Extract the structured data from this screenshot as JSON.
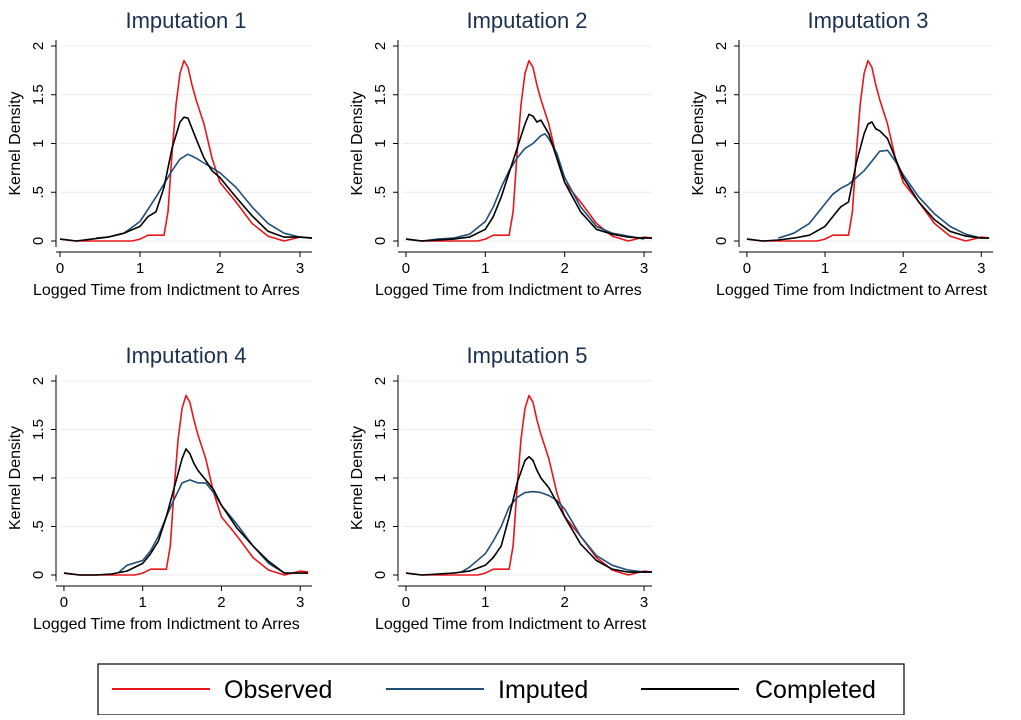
{
  "colors": {
    "observed": "#e8161b",
    "imputed": "#1f4e79",
    "completed": "#000000",
    "title": "#1c3150",
    "grid": "#ececec",
    "axis": "#000000"
  },
  "legend": {
    "placement": "bottom",
    "entries": [
      {
        "label": "Observed",
        "color_key": "observed"
      },
      {
        "label": "Imputed",
        "color_key": "imputed"
      },
      {
        "label": "Completed",
        "color_key": "completed"
      }
    ]
  },
  "chart_data": [
    {
      "type": "line",
      "title": "Imputation 1",
      "xlabel": "Logged Time from Indictment to Arres",
      "ylabel": "Kernel Density",
      "xlim": [
        0,
        3.15
      ],
      "ylim": [
        0,
        2
      ],
      "xticks": [
        "0",
        "1",
        "2",
        "3"
      ],
      "yticks": [
        "0",
        ".5",
        "1",
        "1.5",
        "2"
      ],
      "grid": true,
      "series": [
        {
          "name": "Observed",
          "color_key": "observed",
          "x": [
            0,
            0.2,
            0.5,
            0.9,
            1.0,
            1.1,
            1.2,
            1.3,
            1.35,
            1.4,
            1.45,
            1.5,
            1.55,
            1.6,
            1.65,
            1.7,
            1.8,
            1.9,
            2.0,
            2.2,
            2.4,
            2.6,
            2.8,
            3.0,
            3.15
          ],
          "y": [
            0.02,
            0.0,
            0.0,
            0.0,
            0.02,
            0.06,
            0.06,
            0.06,
            0.3,
            0.9,
            1.4,
            1.72,
            1.85,
            1.78,
            1.6,
            1.45,
            1.2,
            0.85,
            0.6,
            0.4,
            0.18,
            0.05,
            0.0,
            0.04,
            0.03
          ]
        },
        {
          "name": "Imputed",
          "color_key": "imputed",
          "x": [
            0.45,
            0.6,
            0.8,
            1.0,
            1.2,
            1.4,
            1.5,
            1.6,
            1.7,
            1.8,
            1.9,
            2.0,
            2.2,
            2.4,
            2.6,
            2.8,
            3.0,
            3.15
          ],
          "y": [
            0.03,
            0.04,
            0.08,
            0.2,
            0.45,
            0.72,
            0.84,
            0.89,
            0.85,
            0.8,
            0.75,
            0.7,
            0.55,
            0.35,
            0.18,
            0.08,
            0.04,
            0.03
          ]
        },
        {
          "name": "Completed",
          "color_key": "completed",
          "x": [
            0,
            0.2,
            0.4,
            0.6,
            0.8,
            1.0,
            1.1,
            1.2,
            1.3,
            1.4,
            1.5,
            1.55,
            1.6,
            1.7,
            1.8,
            1.9,
            2.0,
            2.2,
            2.4,
            2.6,
            2.8,
            3.0,
            3.15
          ],
          "y": [
            0.02,
            0.0,
            0.02,
            0.04,
            0.08,
            0.15,
            0.25,
            0.3,
            0.55,
            0.95,
            1.22,
            1.27,
            1.26,
            1.05,
            0.85,
            0.72,
            0.65,
            0.45,
            0.26,
            0.1,
            0.04,
            0.04,
            0.03
          ]
        }
      ]
    },
    {
      "type": "line",
      "title": "Imputation 2",
      "xlabel": "Logged Time from Indictment to Arres",
      "ylabel": "Kernel Density",
      "xlim": [
        -0.05,
        3.1
      ],
      "ylim": [
        0,
        2
      ],
      "xticks": [
        "0",
        "1",
        "2",
        "3"
      ],
      "yticks": [
        "0",
        ".5",
        "1",
        "1.5",
        "2"
      ],
      "grid": true,
      "series": [
        {
          "name": "Observed",
          "color_key": "observed",
          "x": [
            0,
            0.2,
            0.5,
            0.9,
            1.0,
            1.1,
            1.2,
            1.3,
            1.35,
            1.4,
            1.45,
            1.5,
            1.55,
            1.6,
            1.65,
            1.7,
            1.8,
            1.9,
            2.0,
            2.2,
            2.4,
            2.6,
            2.8,
            3.0,
            3.1
          ],
          "y": [
            0.02,
            0.0,
            0.0,
            0.0,
            0.02,
            0.06,
            0.06,
            0.06,
            0.3,
            0.9,
            1.4,
            1.72,
            1.85,
            1.78,
            1.6,
            1.45,
            1.2,
            0.85,
            0.6,
            0.4,
            0.18,
            0.05,
            0.0,
            0.04,
            0.03
          ]
        },
        {
          "name": "Imputed",
          "color_key": "imputed",
          "x": [
            0,
            0.2,
            0.4,
            0.6,
            0.8,
            1.0,
            1.1,
            1.2,
            1.3,
            1.4,
            1.5,
            1.6,
            1.7,
            1.75,
            1.8,
            1.9,
            2.0,
            2.2,
            2.4,
            2.6,
            2.8,
            3.0
          ],
          "y": [
            0.02,
            0.0,
            0.02,
            0.03,
            0.07,
            0.2,
            0.35,
            0.55,
            0.72,
            0.85,
            0.95,
            1.0,
            1.08,
            1.1,
            1.05,
            0.9,
            0.65,
            0.35,
            0.15,
            0.08,
            0.05,
            0.02
          ]
        },
        {
          "name": "Completed",
          "color_key": "completed",
          "x": [
            0,
            0.2,
            0.4,
            0.6,
            0.8,
            1.0,
            1.1,
            1.2,
            1.3,
            1.4,
            1.5,
            1.55,
            1.6,
            1.65,
            1.7,
            1.8,
            1.9,
            2.0,
            2.2,
            2.4,
            2.6,
            2.8,
            3.0,
            3.1
          ],
          "y": [
            0.02,
            0.0,
            0.01,
            0.02,
            0.04,
            0.12,
            0.25,
            0.45,
            0.7,
            0.95,
            1.2,
            1.3,
            1.28,
            1.22,
            1.24,
            1.1,
            0.85,
            0.6,
            0.3,
            0.12,
            0.07,
            0.04,
            0.03,
            0.03
          ]
        }
      ]
    },
    {
      "type": "line",
      "title": "Imputation 3",
      "xlabel": "Logged Time from Indictment to Arrest",
      "ylabel": "Kernel Density",
      "xlim": [
        -0.05,
        3.15
      ],
      "ylim": [
        0,
        2
      ],
      "xticks": [
        "0",
        "1",
        "2",
        "3"
      ],
      "yticks": [
        "0",
        ".5",
        "1",
        "1.5",
        "2"
      ],
      "grid": true,
      "series": [
        {
          "name": "Observed",
          "color_key": "observed",
          "x": [
            0,
            0.2,
            0.5,
            0.9,
            1.0,
            1.1,
            1.2,
            1.3,
            1.35,
            1.4,
            1.45,
            1.5,
            1.55,
            1.6,
            1.65,
            1.7,
            1.8,
            1.9,
            2.0,
            2.2,
            2.4,
            2.6,
            2.8,
            3.0,
            3.1
          ],
          "y": [
            0.02,
            0.0,
            0.0,
            0.0,
            0.02,
            0.06,
            0.06,
            0.06,
            0.3,
            0.9,
            1.4,
            1.72,
            1.85,
            1.78,
            1.6,
            1.45,
            1.2,
            0.85,
            0.6,
            0.4,
            0.18,
            0.05,
            0.0,
            0.04,
            0.03
          ]
        },
        {
          "name": "Imputed",
          "color_key": "imputed",
          "x": [
            0.4,
            0.6,
            0.8,
            1.0,
            1.1,
            1.2,
            1.3,
            1.4,
            1.5,
            1.6,
            1.7,
            1.8,
            1.9,
            2.0,
            2.2,
            2.4,
            2.6,
            2.8,
            3.0
          ],
          "y": [
            0.03,
            0.08,
            0.18,
            0.38,
            0.48,
            0.54,
            0.58,
            0.65,
            0.72,
            0.82,
            0.92,
            0.93,
            0.82,
            0.68,
            0.45,
            0.28,
            0.15,
            0.07,
            0.03
          ]
        },
        {
          "name": "Completed",
          "color_key": "completed",
          "x": [
            0,
            0.2,
            0.4,
            0.6,
            0.8,
            1.0,
            1.1,
            1.2,
            1.3,
            1.4,
            1.5,
            1.55,
            1.6,
            1.65,
            1.7,
            1.8,
            1.9,
            2.0,
            2.2,
            2.4,
            2.6,
            2.8,
            3.0,
            3.1
          ],
          "y": [
            0.02,
            0.0,
            0.01,
            0.03,
            0.06,
            0.15,
            0.25,
            0.35,
            0.4,
            0.8,
            1.1,
            1.2,
            1.22,
            1.15,
            1.13,
            1.05,
            0.85,
            0.65,
            0.4,
            0.22,
            0.1,
            0.05,
            0.03,
            0.03
          ]
        }
      ]
    },
    {
      "type": "line",
      "title": "Imputation 4",
      "xlabel": "Logged Time from Indictment to Arres",
      "ylabel": "Kernel Density",
      "xlim": [
        -0.05,
        3.15
      ],
      "ylim": [
        0,
        2
      ],
      "xticks": [
        "0",
        "1",
        "2",
        "3"
      ],
      "yticks": [
        "0",
        ".5",
        "1",
        "1.5",
        "2"
      ],
      "grid": true,
      "series": [
        {
          "name": "Observed",
          "color_key": "observed",
          "x": [
            0,
            0.2,
            0.5,
            0.9,
            1.0,
            1.1,
            1.2,
            1.3,
            1.35,
            1.4,
            1.45,
            1.5,
            1.55,
            1.6,
            1.65,
            1.7,
            1.8,
            1.9,
            2.0,
            2.2,
            2.4,
            2.6,
            2.8,
            3.0,
            3.1
          ],
          "y": [
            0.02,
            0.0,
            0.0,
            0.0,
            0.02,
            0.06,
            0.06,
            0.06,
            0.3,
            0.9,
            1.4,
            1.72,
            1.85,
            1.78,
            1.6,
            1.45,
            1.2,
            0.85,
            0.6,
            0.4,
            0.18,
            0.05,
            0.0,
            0.04,
            0.03
          ]
        },
        {
          "name": "Imputed",
          "color_key": "imputed",
          "x": [
            0.7,
            0.8,
            1.0,
            1.1,
            1.2,
            1.3,
            1.4,
            1.5,
            1.6,
            1.7,
            1.8,
            1.9,
            2.0,
            2.2,
            2.4,
            2.6,
            2.8
          ],
          "y": [
            0.03,
            0.1,
            0.15,
            0.25,
            0.4,
            0.6,
            0.78,
            0.95,
            0.98,
            0.95,
            0.95,
            0.85,
            0.72,
            0.52,
            0.3,
            0.12,
            0.02
          ]
        },
        {
          "name": "Completed",
          "color_key": "completed",
          "x": [
            0,
            0.2,
            0.4,
            0.6,
            0.8,
            1.0,
            1.1,
            1.2,
            1.3,
            1.4,
            1.5,
            1.55,
            1.6,
            1.65,
            1.7,
            1.8,
            1.9,
            2.0,
            2.2,
            2.4,
            2.6,
            2.8,
            3.0,
            3.1
          ],
          "y": [
            0.02,
            0.0,
            0.0,
            0.01,
            0.04,
            0.12,
            0.22,
            0.35,
            0.6,
            0.9,
            1.2,
            1.3,
            1.25,
            1.15,
            1.08,
            0.98,
            0.88,
            0.72,
            0.48,
            0.3,
            0.14,
            0.02,
            0.02,
            0.02
          ]
        }
      ]
    },
    {
      "type": "line",
      "title": "Imputation 5",
      "xlabel": "Logged Time from Indictment to Arrest",
      "ylabel": "Kernel Density",
      "xlim": [
        -0.05,
        3.1
      ],
      "ylim": [
        0,
        2
      ],
      "xticks": [
        "0",
        "1",
        "2",
        "3"
      ],
      "yticks": [
        "0",
        ".5",
        "1",
        "1.5",
        "2"
      ],
      "grid": true,
      "series": [
        {
          "name": "Observed",
          "color_key": "observed",
          "x": [
            0,
            0.2,
            0.5,
            0.9,
            1.0,
            1.1,
            1.2,
            1.3,
            1.35,
            1.4,
            1.45,
            1.5,
            1.55,
            1.6,
            1.65,
            1.7,
            1.8,
            1.9,
            2.0,
            2.2,
            2.4,
            2.6,
            2.8,
            3.0,
            3.1
          ],
          "y": [
            0.02,
            0.0,
            0.0,
            0.0,
            0.02,
            0.06,
            0.06,
            0.06,
            0.3,
            0.9,
            1.4,
            1.72,
            1.85,
            1.78,
            1.6,
            1.45,
            1.2,
            0.85,
            0.6,
            0.4,
            0.18,
            0.05,
            0.0,
            0.04,
            0.03
          ]
        },
        {
          "name": "Imputed",
          "color_key": "imputed",
          "x": [
            0.7,
            0.8,
            1.0,
            1.1,
            1.2,
            1.3,
            1.4,
            1.5,
            1.6,
            1.7,
            1.8,
            1.9,
            2.0,
            2.2,
            2.4,
            2.6,
            2.8,
            3.0,
            3.1
          ],
          "y": [
            0.03,
            0.08,
            0.22,
            0.35,
            0.5,
            0.7,
            0.8,
            0.85,
            0.86,
            0.85,
            0.82,
            0.77,
            0.68,
            0.4,
            0.2,
            0.1,
            0.05,
            0.03,
            0.03
          ]
        },
        {
          "name": "Completed",
          "color_key": "completed",
          "x": [
            0,
            0.2,
            0.4,
            0.6,
            0.8,
            1.0,
            1.1,
            1.2,
            1.3,
            1.4,
            1.5,
            1.55,
            1.6,
            1.65,
            1.7,
            1.8,
            1.9,
            2.0,
            2.2,
            2.4,
            2.6,
            2.8,
            3.0,
            3.1
          ],
          "y": [
            0.02,
            0.0,
            0.01,
            0.02,
            0.04,
            0.1,
            0.18,
            0.3,
            0.6,
            0.95,
            1.18,
            1.22,
            1.18,
            1.08,
            1.0,
            0.9,
            0.75,
            0.6,
            0.32,
            0.15,
            0.06,
            0.03,
            0.03,
            0.03
          ]
        }
      ]
    }
  ]
}
